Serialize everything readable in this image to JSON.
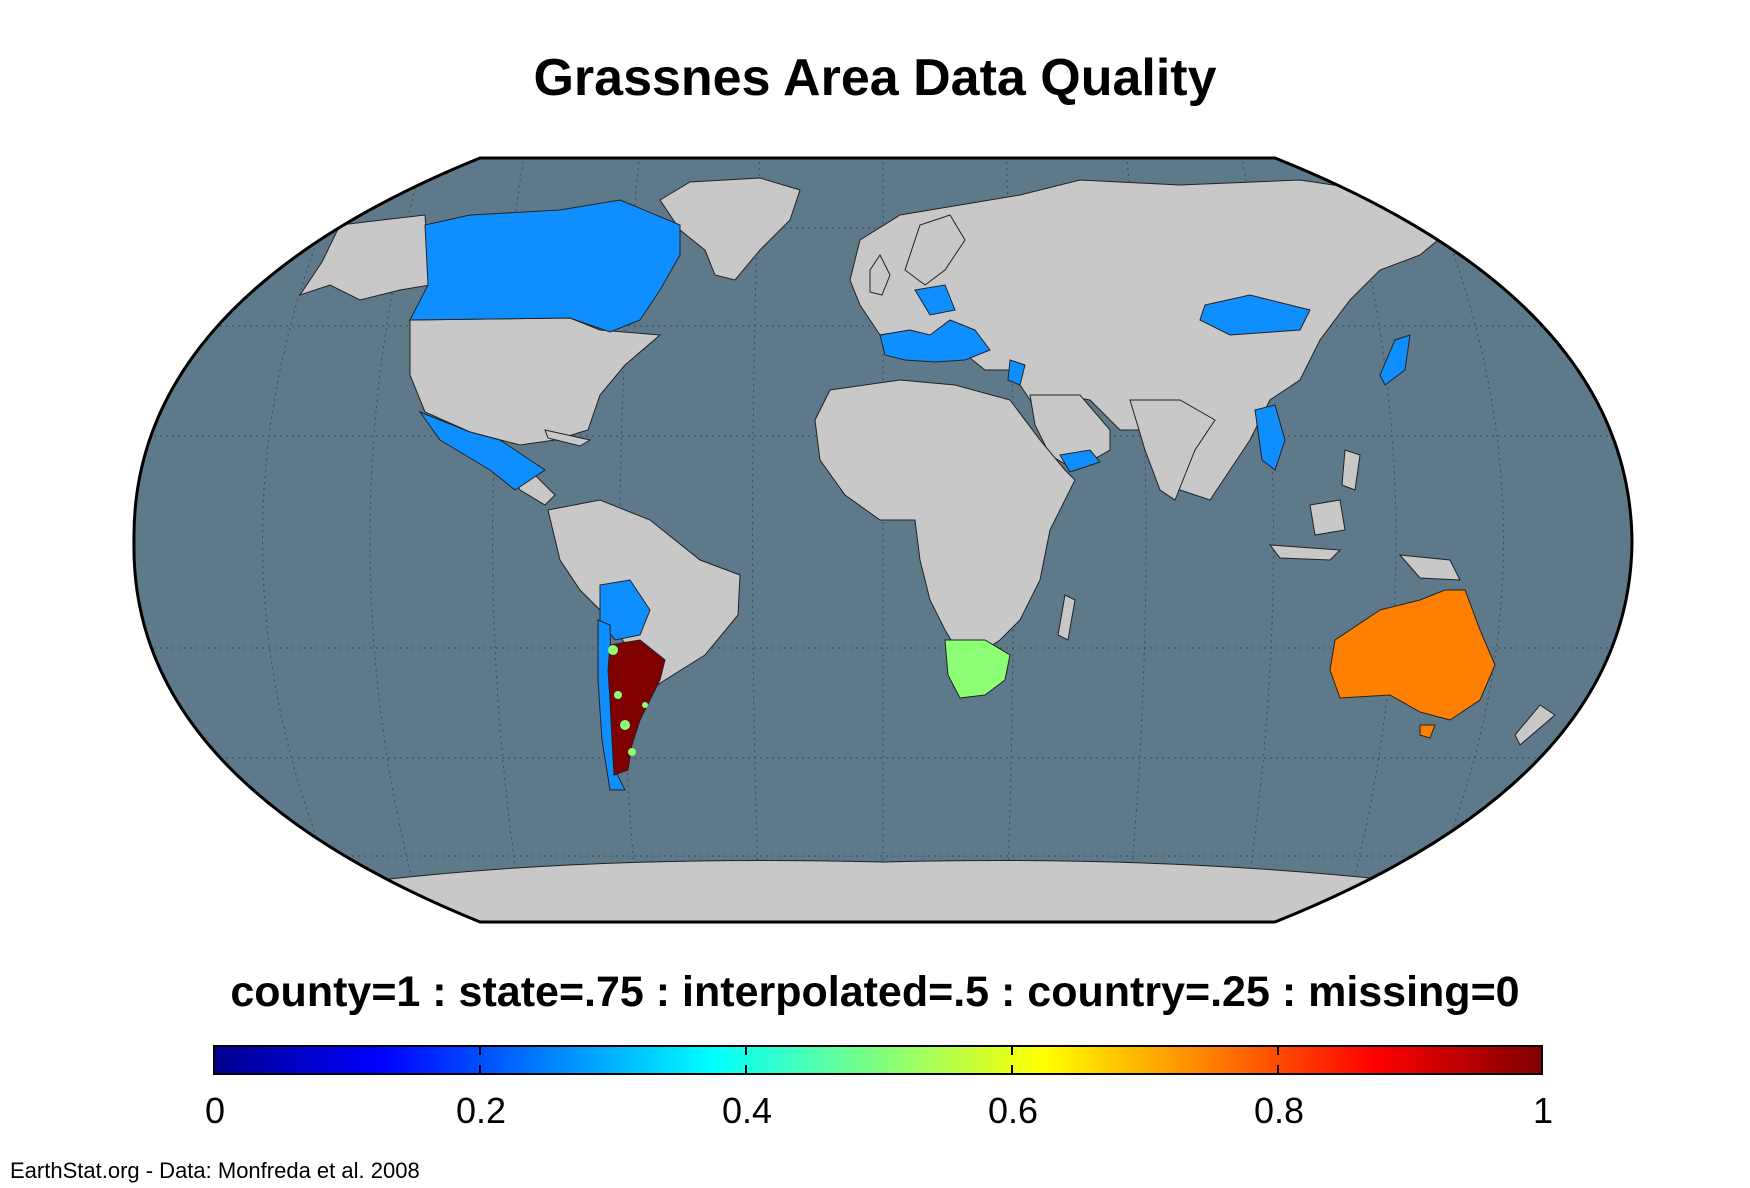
{
  "title": "Grassnes Area Data Quality",
  "legend": {
    "caption": "county=1 : state=.75 : interpolated=.5 : country=.25 : missing=0",
    "ticks": [
      "0",
      "0.2",
      "0.4",
      "0.6",
      "0.8",
      "1"
    ],
    "range": [
      0,
      1
    ],
    "colormap": "jet"
  },
  "credit": "EarthStat.org - Data: Monfreda et al. 2008",
  "colors": {
    "ocean": "#5e7989",
    "land_missing": "#c8c8c8",
    "value_0_25": "#0f8fff",
    "value_0_5": "#8cff74",
    "value_0_75": "#ff8000",
    "value_1": "#800000"
  },
  "regions": [
    {
      "name": "Canada",
      "value": 0.25
    },
    {
      "name": "Mexico",
      "value": 0.25
    },
    {
      "name": "Southern Europe",
      "value": 0.25
    },
    {
      "name": "Mongolia",
      "value": 0.25
    },
    {
      "name": "Japan",
      "value": 0.25
    },
    {
      "name": "Yemen",
      "value": 0.25
    },
    {
      "name": "Myanmar",
      "value": 0.25
    },
    {
      "name": "Chile",
      "value": 0.25
    },
    {
      "name": "Bolivia / Paraguay",
      "value": 0.25
    },
    {
      "name": "South Africa",
      "value": 0.5
    },
    {
      "name": "Australia",
      "value": 0.75
    },
    {
      "name": "Argentina",
      "value": 1
    }
  ]
}
